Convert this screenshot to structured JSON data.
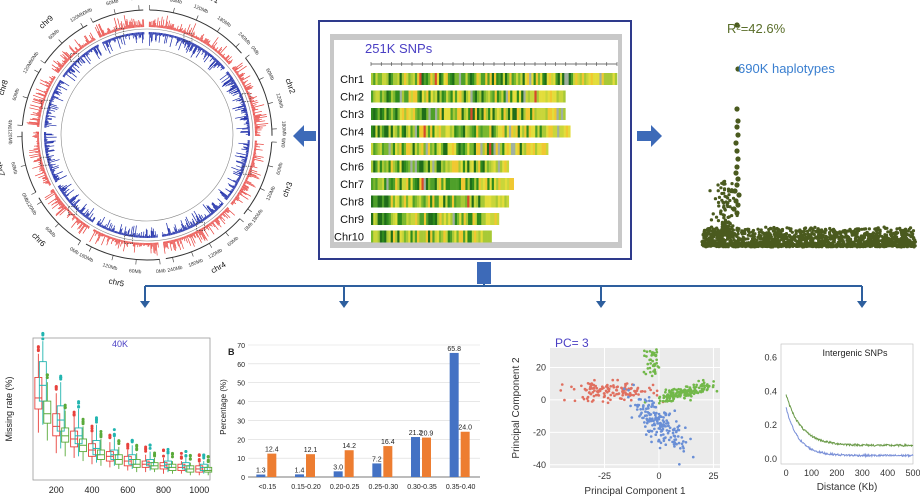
{
  "colors": {
    "frame_blue": "#2e3a8c",
    "connector_blue": "#2e5f9e",
    "arrow_blue": "#3d6ab8",
    "heatmap_panel": "#c8c8c8",
    "manhattan_dot": "#4a5a1e",
    "blue_series": "#4472c4",
    "orange_series": "#ed7d31",
    "red_series": "#e8413c",
    "teal_series": "#22b5b0",
    "green_series": "#5aaa3a",
    "pca_red": "#e07060",
    "pca_green": "#72b84a",
    "pca_blue": "#6a8fd6",
    "ld_green": "#6a9a48",
    "ld_blue": "#7a90d8",
    "title_purple": "#4a3fc4",
    "label_green": "#5a6e2a",
    "label_blue": "#3a7fd0"
  },
  "circos": {
    "chromosomes": [
      {
        "name": "chr1",
        "ticks": [
          "0Mb",
          "60Mb",
          "120Mb",
          "180Mb",
          "240Mb"
        ]
      },
      {
        "name": "chr2",
        "ticks": [
          "0Mb",
          "60Mb",
          "120Mb",
          "180Mb"
        ]
      },
      {
        "name": "chr3",
        "ticks": [
          "0Mb",
          "60Mb",
          "120Mb",
          "180Mb"
        ]
      },
      {
        "name": "chr4",
        "ticks": [
          "0Mb",
          "60Mb",
          "120Mb",
          "180Mb",
          "240Mb"
        ]
      },
      {
        "name": "chr5",
        "ticks": [
          "0Mb",
          "60Mb",
          "120Mb",
          "180Mb"
        ]
      },
      {
        "name": "chr6",
        "ticks": [
          "0Mb",
          "60Mb",
          "120Mb"
        ]
      },
      {
        "name": "chr7",
        "ticks": [
          "0Mb",
          "60Mb",
          "120Mb"
        ]
      },
      {
        "name": "chr8",
        "ticks": [
          "0Mb",
          "60Mb",
          "120Mb"
        ]
      },
      {
        "name": "chr9",
        "ticks": [
          "0Mb",
          "60Mb",
          "120Mb"
        ]
      },
      {
        "name": "chr10",
        "ticks": [
          "0Mb",
          "60Mb",
          "120Mb"
        ]
      }
    ]
  },
  "heatmap": {
    "title": "251K SNPs",
    "rows": [
      {
        "label": "Chr1",
        "length": 1.0
      },
      {
        "label": "Chr2",
        "length": 0.79
      },
      {
        "label": "Chr3",
        "length": 0.79
      },
      {
        "label": "Chr4",
        "length": 0.81
      },
      {
        "label": "Chr5",
        "length": 0.72
      },
      {
        "label": "Chr6",
        "length": 0.56
      },
      {
        "label": "Chr7",
        "length": 0.58
      },
      {
        "label": "Chr8",
        "length": 0.56
      },
      {
        "label": "Chr9",
        "length": 0.52
      },
      {
        "label": "Chr10",
        "length": 0.49
      }
    ]
  },
  "manhattan": {
    "r2_label": "R²=42.6%",
    "haplotypes_label": "690K haplotypes"
  },
  "chart_data": [
    {
      "type": "box",
      "title": "40K",
      "ylabel": "Missing rate (%)",
      "x_ticks": [
        "200",
        "400",
        "600",
        "800",
        "1000"
      ],
      "ylim": [
        0,
        90
      ],
      "xlim": [
        70,
        1060
      ],
      "series": [
        {
          "name": "",
          "color": "#e8413c",
          "x": [
            100,
            200,
            300,
            400,
            500,
            600,
            700,
            800,
            900,
            1000
          ],
          "median": [
            52,
            34,
            26,
            19,
            15,
            12,
            10,
            9,
            8,
            7
          ],
          "q1": [
            45,
            28,
            21,
            15,
            12,
            9,
            8,
            7,
            6,
            5
          ],
          "q3": [
            65,
            42,
            31,
            23,
            18,
            15,
            12,
            11,
            10,
            9
          ],
          "low": [
            30,
            17,
            14,
            10,
            8,
            6,
            5,
            4,
            4,
            3
          ],
          "high": [
            80,
            55,
            40,
            30,
            24,
            19,
            16,
            14,
            12,
            11
          ]
        },
        {
          "name": "",
          "color": "#22b5b0",
          "x": [
            125,
            225,
            325,
            425,
            525,
            625,
            725,
            825,
            925,
            1025
          ],
          "median": [
            60,
            38,
            28,
            20,
            16,
            13,
            11,
            10,
            9,
            8
          ],
          "q1": [
            50,
            31,
            23,
            16,
            13,
            10,
            9,
            8,
            7,
            6
          ],
          "q3": [
            75,
            47,
            33,
            25,
            19,
            16,
            13,
            12,
            11,
            10
          ],
          "low": [
            35,
            20,
            15,
            11,
            9,
            7,
            6,
            5,
            5,
            4
          ],
          "high": [
            88,
            62,
            45,
            35,
            27,
            22,
            18,
            16,
            14,
            12
          ]
        },
        {
          "name": "",
          "color": "#5aaa3a",
          "x": [
            150,
            250,
            350,
            450,
            550,
            650,
            750,
            850,
            950,
            1050
          ],
          "median": [
            42,
            28,
            22,
            16,
            13,
            10,
            9,
            8,
            7,
            6
          ],
          "q1": [
            36,
            24,
            18,
            13,
            10,
            8,
            7,
            6,
            5,
            5
          ],
          "q3": [
            50,
            33,
            26,
            19,
            16,
            13,
            11,
            10,
            9,
            8
          ],
          "low": [
            25,
            15,
            12,
            9,
            7,
            5,
            5,
            4,
            3,
            3
          ],
          "high": [
            62,
            44,
            34,
            26,
            21,
            17,
            14,
            12,
            11,
            10
          ]
        }
      ]
    },
    {
      "type": "bar",
      "panel_letter": "B",
      "ylabel": "Percentage (%)",
      "categories": [
        "<0.15",
        "0.15-0.20",
        "0.20-0.25",
        "0.25-0.30",
        "0.30-0.35",
        "0.35-0.40"
      ],
      "series": [
        {
          "name": "",
          "color": "#4472c4",
          "values": [
            1.3,
            1.4,
            3.0,
            7.2,
            21.2,
            65.8
          ],
          "labels": [
            "1.3",
            "1.4",
            "3.0",
            "7.2",
            "21.2",
            "65.8"
          ]
        },
        {
          "name": "",
          "color": "#ed7d31",
          "values": [
            12.4,
            12.1,
            14.2,
            16.4,
            20.9,
            24.0
          ],
          "labels": [
            "12.4",
            "12.1",
            "14.2",
            "16.4",
            "20.9",
            "24.0"
          ]
        }
      ],
      "y_ticks": [
        "0",
        "10",
        "20",
        "30",
        "40",
        "50",
        "60",
        "70"
      ],
      "ylim": [
        0,
        70
      ]
    },
    {
      "type": "scatter",
      "title": "PC= 3",
      "xlabel": "Principal Component 1",
      "ylabel": "Principal Component 2",
      "x_ticks": [
        "-25",
        "0",
        "25"
      ],
      "y_ticks": [
        "20",
        "0",
        "-20",
        "-40"
      ],
      "xlim": [
        -50,
        28
      ],
      "ylim": [
        -42,
        32
      ],
      "clusters": [
        {
          "color": "#e07060",
          "cx": -22,
          "cy": 5,
          "sx": 10,
          "sy": 3,
          "n": 140
        },
        {
          "color": "#72b84a",
          "cx": 12,
          "cy": 5,
          "sx": 6,
          "sy": 3,
          "n": 150
        },
        {
          "color": "#72b84a",
          "cx": -3,
          "cy": 22,
          "sx": 2,
          "sy": 5,
          "n": 40
        },
        {
          "color": "#6a8fd6",
          "cx": 0,
          "cy": -14,
          "sx": 5,
          "sy": 9,
          "n": 180
        }
      ]
    },
    {
      "type": "line",
      "title": "Intergenic   SNPs",
      "xlabel": "Distance (Kb)",
      "x_ticks": [
        "0",
        "100",
        "200",
        "300",
        "400",
        "500"
      ],
      "y_ticks": [
        "0.0",
        "0.2",
        "0.4",
        "0.6"
      ],
      "xlim": [
        -20,
        500
      ],
      "ylim": [
        -0.03,
        0.68
      ],
      "series": [
        {
          "name": "",
          "color": "#6a9a48",
          "start": 0.38,
          "asymptote": 0.08,
          "decay": 60
        },
        {
          "name": "",
          "color": "#7a90d8",
          "start": 0.3,
          "asymptote": 0.02,
          "decay": 50
        }
      ]
    }
  ]
}
